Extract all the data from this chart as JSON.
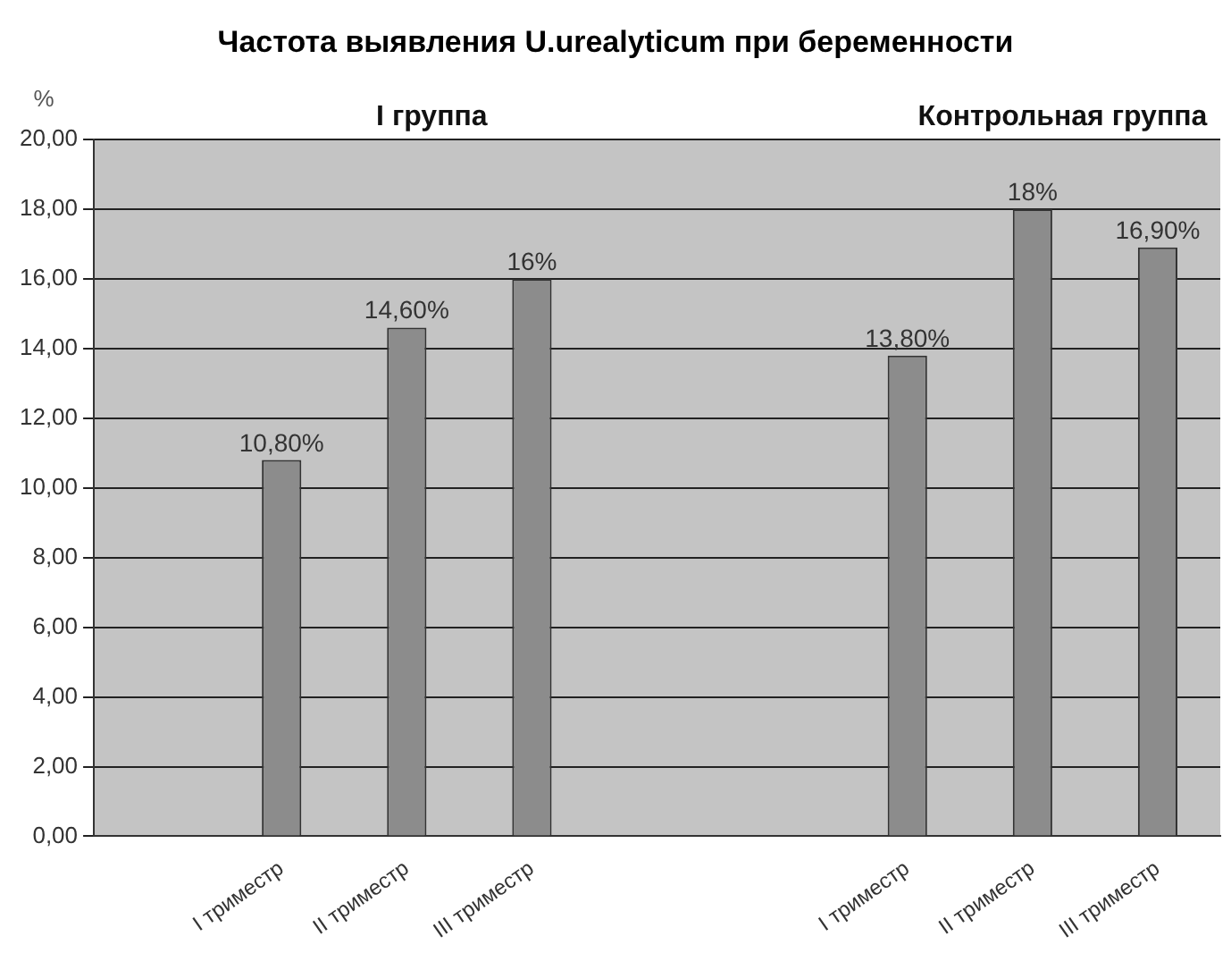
{
  "chart_data": {
    "type": "bar",
    "title": "Частота выявления U.urealyticum при беременности",
    "ylabel": "%",
    "categories": [
      null,
      "I триместр",
      "II триместр",
      "III триместр",
      null,
      null,
      "I триместр",
      "II триместр",
      "III триместр"
    ],
    "values": [
      null,
      10.8,
      14.6,
      16,
      null,
      null,
      13.8,
      18,
      16.9
    ],
    "value_labels": [
      null,
      "10,80%",
      "14,60%",
      "16%",
      null,
      null,
      "13,80%",
      "18%",
      "16,90%"
    ],
    "color": "#8c8c8c",
    "ylim": [
      0,
      20
    ],
    "yticks": [
      {
        "value": 0,
        "label": "0,00"
      },
      {
        "value": 2,
        "label": "2,00"
      },
      {
        "value": 4,
        "label": "4,00"
      },
      {
        "value": 6,
        "label": "6,00"
      },
      {
        "value": 8,
        "label": "8,00"
      },
      {
        "value": 10,
        "label": "10,00"
      },
      {
        "value": 12,
        "label": "12,00"
      },
      {
        "value": 14,
        "label": "14,00"
      },
      {
        "value": 16,
        "label": "16,00"
      },
      {
        "value": 18,
        "label": "18,00"
      },
      {
        "value": 20,
        "label": "20,00"
      }
    ],
    "grid": "y",
    "legend": false,
    "annotations": [
      "I группа",
      "Контрольная группа"
    ]
  }
}
